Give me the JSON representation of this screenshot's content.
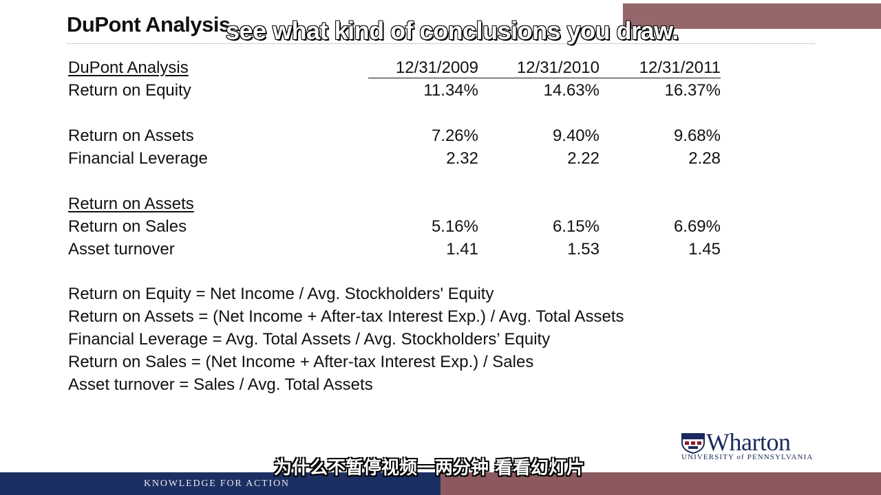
{
  "slide": {
    "title": "DuPont Analysis",
    "table": {
      "header_label": "DuPont Analysis",
      "periods": [
        "12/31/2009",
        "12/31/2010",
        "12/31/2011"
      ],
      "roe": {
        "label": "Return on Equity",
        "values": [
          "11.34%",
          "14.63%",
          "16.37%"
        ]
      },
      "roa": {
        "label": "Return on Assets",
        "values": [
          "7.26%",
          "9.40%",
          "9.68%"
        ]
      },
      "leverage": {
        "label": "Financial Leverage",
        "values": [
          "2.32",
          "2.22",
          "2.28"
        ]
      },
      "roa_section_label": "Return on Assets",
      "ros": {
        "label": "Return on Sales",
        "values": [
          "5.16%",
          "6.15%",
          "6.69%"
        ]
      },
      "turnover": {
        "label": "Asset turnover",
        "values": [
          "1.41",
          "1.53",
          "1.45"
        ]
      }
    },
    "formulas": [
      "Return on Equity = Net Income / Avg. Stockholders' Equity",
      "Return on Assets = (Net Income + After-tax Interest Exp.) / Avg. Total Assets",
      "Financial Leverage = Avg. Total Assets / Avg. Stockholders’ Equity",
      "Return on Sales =  (Net Income + After-tax Interest Exp.) / Sales",
      "Asset turnover = Sales / Avg. Total Assets"
    ]
  },
  "logo": {
    "wordmark": "Wharton",
    "university": "UNIVERSITY of PENNSYLVANIA"
  },
  "footer": {
    "tagline": "KNOWLEDGE FOR ACTION"
  },
  "subtitles": {
    "english": "see what kind of conclusions you draw.",
    "chinese": "为什么不暂停视频一两分钟 看看幻灯片"
  },
  "colors": {
    "navy": "#1c2f63",
    "maroon": "#8c5a5e"
  }
}
